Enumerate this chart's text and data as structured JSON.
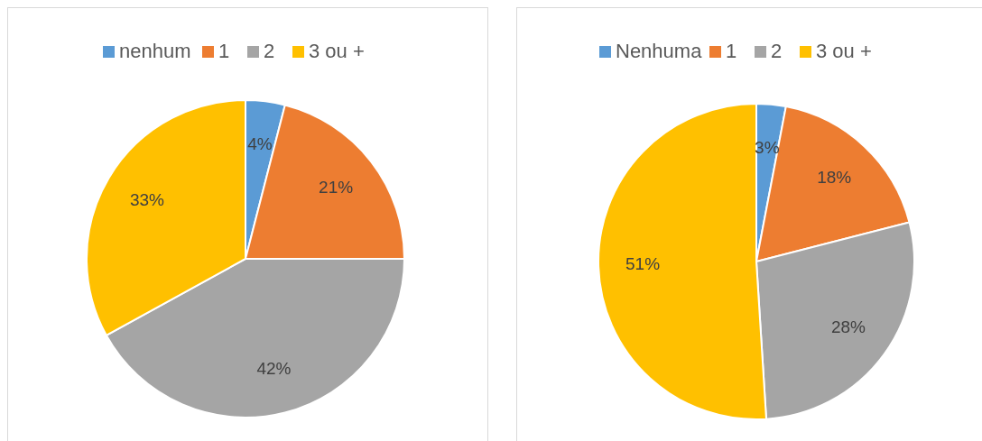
{
  "chart_data": [
    {
      "type": "pie",
      "categories": [
        "nenhum",
        "1",
        "2",
        "3 ou +"
      ],
      "values": [
        4,
        21,
        42,
        33
      ],
      "colors": [
        "#5b9bd5",
        "#ed7d31",
        "#a5a5a5",
        "#ffc000"
      ],
      "value_labels": [
        "4%",
        "21%",
        "42%",
        "33%"
      ],
      "legend": "top"
    },
    {
      "type": "pie",
      "categories": [
        "Nenhuma",
        "1",
        "2",
        "3 ou +"
      ],
      "values": [
        3,
        18,
        28,
        51
      ],
      "colors": [
        "#5b9bd5",
        "#ed7d31",
        "#a5a5a5",
        "#ffc000"
      ],
      "value_labels": [
        "3%",
        "18%",
        "28%",
        "51%"
      ],
      "legend": "top"
    }
  ]
}
